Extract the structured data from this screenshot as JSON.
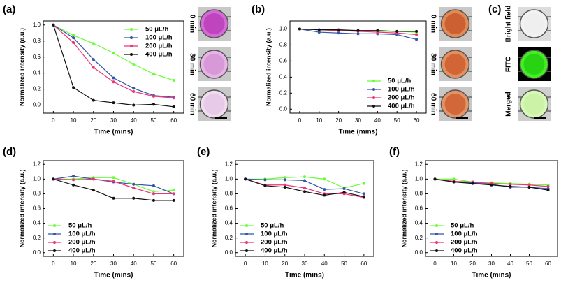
{
  "chart_data": [
    {
      "type": "line",
      "label": "(a)",
      "xlabel": "Time (mins)",
      "ylabel": "Normalized intensity (a.u.)",
      "legend": "upper right",
      "x": [
        0,
        10,
        20,
        30,
        40,
        50,
        60
      ],
      "xlim": [
        -5,
        65
      ],
      "xticks": [
        0,
        10,
        20,
        30,
        40,
        50,
        60
      ],
      "ylim": [
        -0.1,
        1.05
      ],
      "yticks": [
        {
          "value": 0,
          "label": "0.0"
        },
        0.2,
        0.4,
        0.6,
        0.8,
        {
          "value": 1,
          "label": "1.0"
        }
      ],
      "series": [
        {
          "name": "50 μL/h",
          "color": "#66ff33",
          "values": [
            1,
            0.87,
            0.77,
            0.65,
            0.51,
            0.39,
            0.31
          ]
        },
        {
          "name": "100 μL/h",
          "color": "#3355aa",
          "values": [
            1,
            0.84,
            0.57,
            0.34,
            0.21,
            0.12,
            0.1
          ]
        },
        {
          "name": "200 μL/h",
          "color": "#ee3377",
          "values": [
            1,
            0.78,
            0.47,
            0.29,
            0.17,
            0.11,
            0.09
          ]
        },
        {
          "name": "400 μL/h",
          "color": "#111111",
          "values": [
            1,
            0.22,
            0.06,
            0.03,
            0.0,
            0.01,
            -0.02
          ]
        }
      ],
      "image_labels": [
        "0 min",
        "30 min",
        "60 min"
      ]
    },
    {
      "type": "line",
      "label": "(b)",
      "xlabel": "Time (mins)",
      "ylabel": "Normalized intensity (a.u.)",
      "legend": "lower right",
      "x": [
        0,
        10,
        20,
        30,
        40,
        50,
        60
      ],
      "xlim": [
        -5,
        65
      ],
      "xticks": [
        0,
        10,
        20,
        30,
        40,
        50,
        60
      ],
      "ylim": [
        -0.05,
        1.1
      ],
      "yticks": [
        {
          "value": 0,
          "label": "0.0"
        },
        0.2,
        0.4,
        0.6,
        0.8,
        {
          "value": 1,
          "label": "1.0"
        }
      ],
      "series": [
        {
          "name": "50 μL/h",
          "color": "#66ff33",
          "values": [
            1,
            0.99,
            0.98,
            0.98,
            0.97,
            0.97,
            0.96
          ]
        },
        {
          "name": "100 μL/h",
          "color": "#3355aa",
          "values": [
            1,
            0.96,
            0.95,
            0.94,
            0.94,
            0.93,
            0.87
          ]
        },
        {
          "name": "200 μL/h",
          "color": "#ee3377",
          "values": [
            1,
            0.99,
            0.98,
            0.97,
            0.96,
            0.95,
            0.93
          ]
        },
        {
          "name": "400 μL/h",
          "color": "#111111",
          "values": [
            1,
            0.99,
            0.99,
            0.98,
            0.98,
            0.97,
            0.97
          ]
        }
      ],
      "image_labels": [
        "0 min",
        "30 min",
        "60 min"
      ]
    },
    {
      "type": "line",
      "label": "(d)",
      "xlabel": "Time (mins)",
      "ylabel": "Normalized intensity (a.u.)",
      "legend": "lower left",
      "x": [
        0,
        10,
        20,
        30,
        40,
        50,
        60
      ],
      "xlim": [
        -5,
        65
      ],
      "xticks": [
        0,
        10,
        20,
        30,
        40,
        50,
        60
      ],
      "ylim": [
        -0.05,
        1.25
      ],
      "yticks": [
        {
          "value": 0,
          "label": "0.0"
        },
        0.2,
        0.4,
        0.6,
        0.8,
        {
          "value": 1,
          "label": "1.0"
        },
        1.2
      ],
      "series": [
        {
          "name": "50 μL/h",
          "color": "#66ff33",
          "values": [
            1,
            1.0,
            1.02,
            1.02,
            0.93,
            0.83,
            0.85
          ]
        },
        {
          "name": "100 μL/h",
          "color": "#3355aa",
          "values": [
            1,
            1.04,
            1.0,
            0.96,
            0.93,
            0.91,
            0.8
          ]
        },
        {
          "name": "200 μL/h",
          "color": "#ee3377",
          "values": [
            1,
            0.99,
            1.0,
            0.97,
            0.88,
            0.8,
            0.8
          ]
        },
        {
          "name": "400 μL/h",
          "color": "#111111",
          "values": [
            1,
            0.92,
            0.85,
            0.74,
            0.74,
            0.71,
            0.71
          ]
        }
      ]
    },
    {
      "type": "line",
      "label": "(e)",
      "xlabel": "Time (mins)",
      "ylabel": "Normalized intensity (a.u.)",
      "legend": "lower left",
      "x": [
        0,
        10,
        20,
        30,
        40,
        50,
        60
      ],
      "xlim": [
        -5,
        65
      ],
      "xticks": [
        0,
        10,
        20,
        30,
        40,
        50,
        60
      ],
      "ylim": [
        -0.05,
        1.25
      ],
      "yticks": [
        {
          "value": 0,
          "label": "0.0"
        },
        0.2,
        0.4,
        0.6,
        0.8,
        {
          "value": 1,
          "label": "1.0"
        },
        1.2
      ],
      "series": [
        {
          "name": "50 μL/h",
          "color": "#66ff33",
          "values": [
            1,
            1.0,
            1.02,
            1.03,
            1.0,
            0.88,
            0.94
          ]
        },
        {
          "name": "100 μL/h",
          "color": "#3355aa",
          "values": [
            1,
            0.99,
            0.99,
            0.98,
            0.86,
            0.87,
            0.8
          ]
        },
        {
          "name": "200 μL/h",
          "color": "#ee3377",
          "values": [
            1,
            0.92,
            0.92,
            0.88,
            0.8,
            0.8,
            0.75
          ]
        },
        {
          "name": "400 μL/h",
          "color": "#111111",
          "values": [
            1,
            0.91,
            0.89,
            0.83,
            0.78,
            0.82,
            0.76
          ]
        }
      ]
    },
    {
      "type": "line",
      "label": "(f)",
      "xlabel": "Time (mins)",
      "ylabel": "Normalized intensity (a.u.)",
      "legend": "lower left",
      "x": [
        0,
        10,
        20,
        30,
        40,
        50,
        60
      ],
      "xlim": [
        -5,
        65
      ],
      "xticks": [
        0,
        10,
        20,
        30,
        40,
        50,
        60
      ],
      "ylim": [
        -0.05,
        1.25
      ],
      "yticks": [
        {
          "value": 0,
          "label": "0.0"
        },
        0.2,
        0.4,
        0.6,
        0.8,
        {
          "value": 1,
          "label": "1.0"
        },
        1.2
      ],
      "series": [
        {
          "name": "50 μL/h",
          "color": "#66ff33",
          "values": [
            1,
            1.0,
            0.96,
            0.95,
            0.94,
            0.93,
            0.92
          ]
        },
        {
          "name": "100 μL/h",
          "color": "#3355aa",
          "values": [
            1,
            0.96,
            0.95,
            0.93,
            0.89,
            0.89,
            0.87
          ]
        },
        {
          "name": "200 μL/h",
          "color": "#ee3377",
          "values": [
            1,
            0.97,
            0.96,
            0.94,
            0.93,
            0.92,
            0.9
          ]
        },
        {
          "name": "400 μL/h",
          "color": "#111111",
          "values": [
            1,
            0.96,
            0.94,
            0.92,
            0.9,
            0.89,
            0.85
          ]
        }
      ]
    }
  ],
  "image_panel": {
    "label": "(c)",
    "image_labels": [
      "Bright field",
      "FITC",
      "Merged"
    ]
  }
}
